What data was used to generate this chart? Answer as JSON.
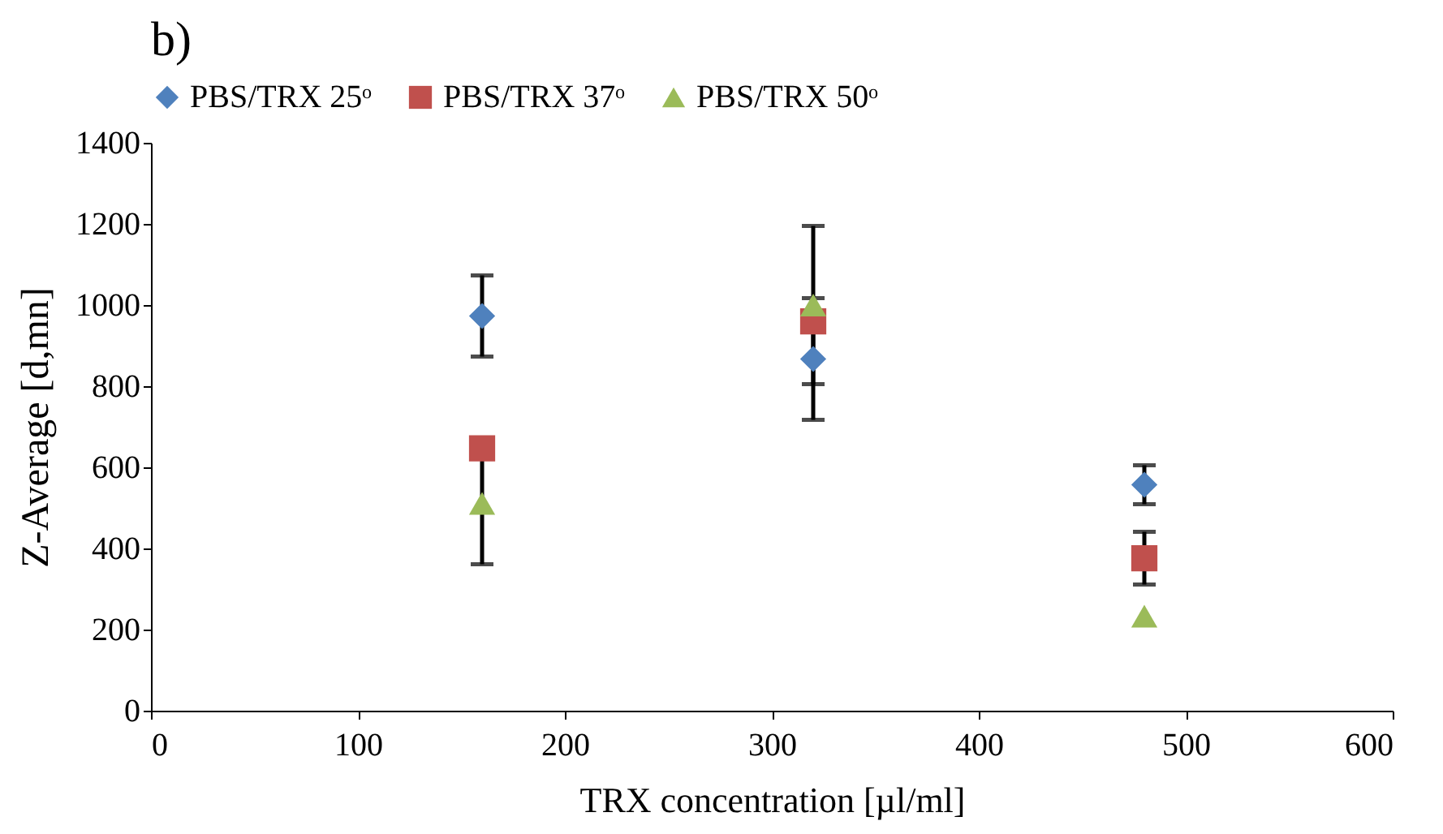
{
  "chart_data": {
    "type": "scatter",
    "title": "b)",
    "xlabel": "TRX concentration [µl/ml]",
    "ylabel": "Z-Average [d,mn]",
    "xlim": [
      0,
      600
    ],
    "xticks": [
      0,
      100,
      200,
      300,
      400,
      500,
      600
    ],
    "ylim": [
      0,
      1400
    ],
    "yticks": [
      0,
      200,
      400,
      600,
      800,
      1000,
      1200,
      1400
    ],
    "grid": false,
    "legend": "top",
    "series": [
      {
        "name": "PBS/TRX 25ᵒ",
        "color": "#4f81bd",
        "marker": "diamond",
        "x": [
          160,
          320,
          480
        ],
        "values": [
          973,
          867,
          557
        ],
        "errors": [
          100,
          150,
          48
        ]
      },
      {
        "name": "PBS/TRX 37ᵒ",
        "color": "#c0504d",
        "marker": "square",
        "x": [
          160,
          320,
          480
        ],
        "values": [
          647,
          960,
          376
        ],
        "errors": [
          null,
          null,
          65
        ]
      },
      {
        "name": "PBS/TRX 50ᵒ",
        "color": "#9bbb59",
        "marker": "triangle",
        "x": [
          160,
          320,
          480
        ],
        "values": [
          511,
          1000,
          233
        ],
        "errors": [
          150,
          195,
          null
        ]
      }
    ]
  }
}
